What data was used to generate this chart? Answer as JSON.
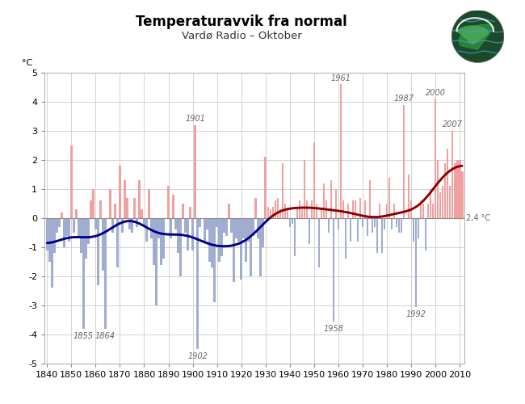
{
  "title": "Temperaturavvik fra normal",
  "subtitle": "Vardø Radio – Oktober",
  "ylabel": "°C",
  "xlim": [
    1839,
    2012
  ],
  "ylim": [
    -5.0,
    5.0
  ],
  "yticks": [
    -5.0,
    -4.0,
    -3.0,
    -2.0,
    -1.0,
    0.0,
    1.0,
    2.0,
    3.0,
    4.0,
    5.0
  ],
  "xticks": [
    1840,
    1850,
    1860,
    1870,
    1880,
    1890,
    1900,
    1910,
    1920,
    1930,
    1940,
    1950,
    1960,
    1970,
    1980,
    1990,
    2000,
    2010
  ],
  "bar_color_pos": "#f0a0a0",
  "bar_color_neg": "#a0acd0",
  "smooth_line_color_neg": "#00008b",
  "smooth_line_color_pos": "#8b0000",
  "background_color": "#ffffff",
  "grid_color": "#cccccc",
  "label_2_4": "2,4 °C",
  "annotated_years": {
    "1855": -3.8,
    "1864": -3.8,
    "1901": 3.2,
    "1902": -4.5,
    "1961": 4.6,
    "1958": -3.55,
    "1987": 3.9,
    "1992": -3.05,
    "2000": 4.1,
    "2007": 3.0
  },
  "years": [
    1840,
    1841,
    1842,
    1843,
    1844,
    1845,
    1846,
    1847,
    1848,
    1849,
    1850,
    1851,
    1852,
    1853,
    1854,
    1855,
    1856,
    1857,
    1858,
    1859,
    1860,
    1861,
    1862,
    1863,
    1864,
    1865,
    1866,
    1867,
    1868,
    1869,
    1870,
    1871,
    1872,
    1873,
    1874,
    1875,
    1876,
    1877,
    1878,
    1879,
    1880,
    1881,
    1882,
    1883,
    1884,
    1885,
    1886,
    1887,
    1888,
    1889,
    1890,
    1891,
    1892,
    1893,
    1894,
    1895,
    1896,
    1897,
    1898,
    1899,
    1900,
    1901,
    1902,
    1903,
    1904,
    1905,
    1906,
    1907,
    1908,
    1909,
    1910,
    1911,
    1912,
    1913,
    1914,
    1915,
    1916,
    1917,
    1918,
    1919,
    1920,
    1921,
    1922,
    1923,
    1924,
    1925,
    1926,
    1927,
    1928,
    1929,
    1930,
    1931,
    1932,
    1933,
    1934,
    1935,
    1936,
    1937,
    1938,
    1939,
    1940,
    1941,
    1942,
    1943,
    1944,
    1945,
    1946,
    1947,
    1948,
    1949,
    1950,
    1951,
    1952,
    1953,
    1954,
    1955,
    1956,
    1957,
    1958,
    1959,
    1960,
    1961,
    1962,
    1963,
    1964,
    1965,
    1966,
    1967,
    1968,
    1969,
    1970,
    1971,
    1972,
    1973,
    1974,
    1975,
    1976,
    1977,
    1978,
    1979,
    1980,
    1981,
    1982,
    1983,
    1984,
    1985,
    1986,
    1987,
    1988,
    1989,
    1990,
    1991,
    1992,
    1993,
    1994,
    1995,
    1996,
    1997,
    1998,
    1999,
    2000,
    2001,
    2002,
    2003,
    2004,
    2005,
    2006,
    2007,
    2008,
    2009,
    2010,
    2011
  ],
  "values": [
    -1.1,
    -1.5,
    -2.4,
    -1.2,
    -0.5,
    -0.3,
    0.2,
    -1.0,
    -0.6,
    -0.8,
    2.5,
    -0.5,
    0.3,
    -0.7,
    -1.2,
    -3.8,
    -1.4,
    -0.9,
    0.6,
    1.0,
    -0.4,
    -2.3,
    0.6,
    -1.8,
    -3.8,
    0.0,
    1.0,
    -0.5,
    0.5,
    -1.7,
    1.8,
    -0.5,
    1.3,
    0.7,
    -0.4,
    -0.5,
    0.7,
    -0.3,
    1.3,
    0.3,
    -0.3,
    -0.8,
    1.0,
    -0.7,
    -1.6,
    -3.0,
    -0.7,
    -1.6,
    -1.4,
    0.0,
    1.1,
    -0.7,
    0.8,
    -0.4,
    -1.2,
    -2.0,
    0.5,
    -0.5,
    -1.1,
    0.4,
    -1.1,
    3.2,
    -4.5,
    -0.3,
    0.0,
    -0.8,
    -0.4,
    -1.5,
    -1.7,
    -2.9,
    -0.3,
    -1.5,
    -1.3,
    -0.5,
    -0.6,
    0.5,
    -0.5,
    -2.2,
    -0.7,
    -0.8,
    -2.1,
    -0.7,
    -1.5,
    -0.8,
    -2.0,
    -0.6,
    0.7,
    -0.7,
    -2.0,
    -1.0,
    2.1,
    0.4,
    0.3,
    0.4,
    0.6,
    0.7,
    0.3,
    1.9,
    0.5,
    0.3,
    -0.3,
    -0.2,
    -1.3,
    0.4,
    0.6,
    0.3,
    2.0,
    0.6,
    -0.9,
    0.6,
    2.6,
    0.5,
    -1.7,
    0.3,
    1.2,
    0.6,
    -0.5,
    1.3,
    -3.55,
    1.0,
    -0.4,
    4.6,
    0.6,
    -1.4,
    0.5,
    -0.8,
    0.6,
    0.6,
    -0.8,
    0.7,
    -0.3,
    0.6,
    -0.6,
    1.3,
    -0.5,
    -0.3,
    -1.2,
    0.5,
    -1.2,
    -0.4,
    0.5,
    1.4,
    -0.4,
    0.5,
    -0.3,
    -0.5,
    -0.5,
    3.9,
    0.0,
    1.5,
    0.6,
    -0.8,
    -3.05,
    -0.7,
    0.6,
    0.5,
    -1.1,
    0.5,
    1.0,
    0.5,
    4.1,
    2.0,
    0.9,
    1.1,
    1.9,
    2.4,
    1.1,
    3.0,
    1.9,
    2.0,
    2.0,
    1.6
  ]
}
